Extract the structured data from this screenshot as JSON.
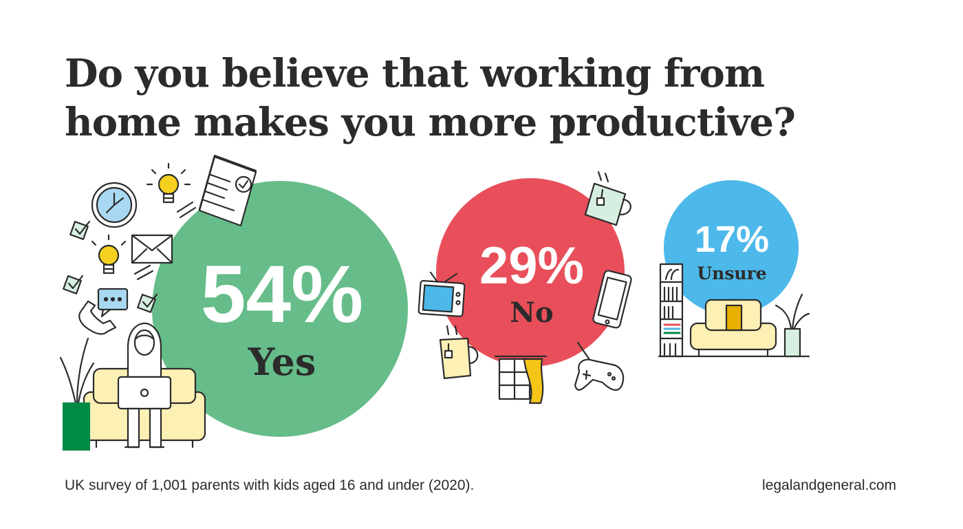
{
  "title_lines": [
    "Do you believe that working from",
    "home makes you more productive?"
  ],
  "chart_data": {
    "type": "bubble",
    "title": "Do you believe that working from home makes you more productive?",
    "categories": [
      "Yes",
      "No",
      "Unsure"
    ],
    "values": [
      54,
      29,
      17
    ],
    "value_labels": [
      "54%",
      "29%",
      "17%"
    ],
    "colors": [
      "#66bd8a",
      "#e84f5a",
      "#4db8ea"
    ]
  },
  "footnote": "UK survey of 1,001 parents with kids aged 16 and under (2020).",
  "source": "legalandgeneral.com",
  "icons": {
    "yes_group": [
      "clock-icon",
      "lightbulb-icon",
      "document-icon",
      "envelope-icon",
      "checkbox-icon",
      "chat-bubble-icon",
      "phone-icon",
      "person-laptop-icon",
      "armchair-icon",
      "plant-icon"
    ],
    "no_group": [
      "mug-icon",
      "tv-icon",
      "smartphone-icon",
      "window-curtain-icon",
      "gamepad-icon"
    ],
    "unsure_group": [
      "bookshelf-icon",
      "sofa-icon",
      "plant-icon"
    ]
  }
}
